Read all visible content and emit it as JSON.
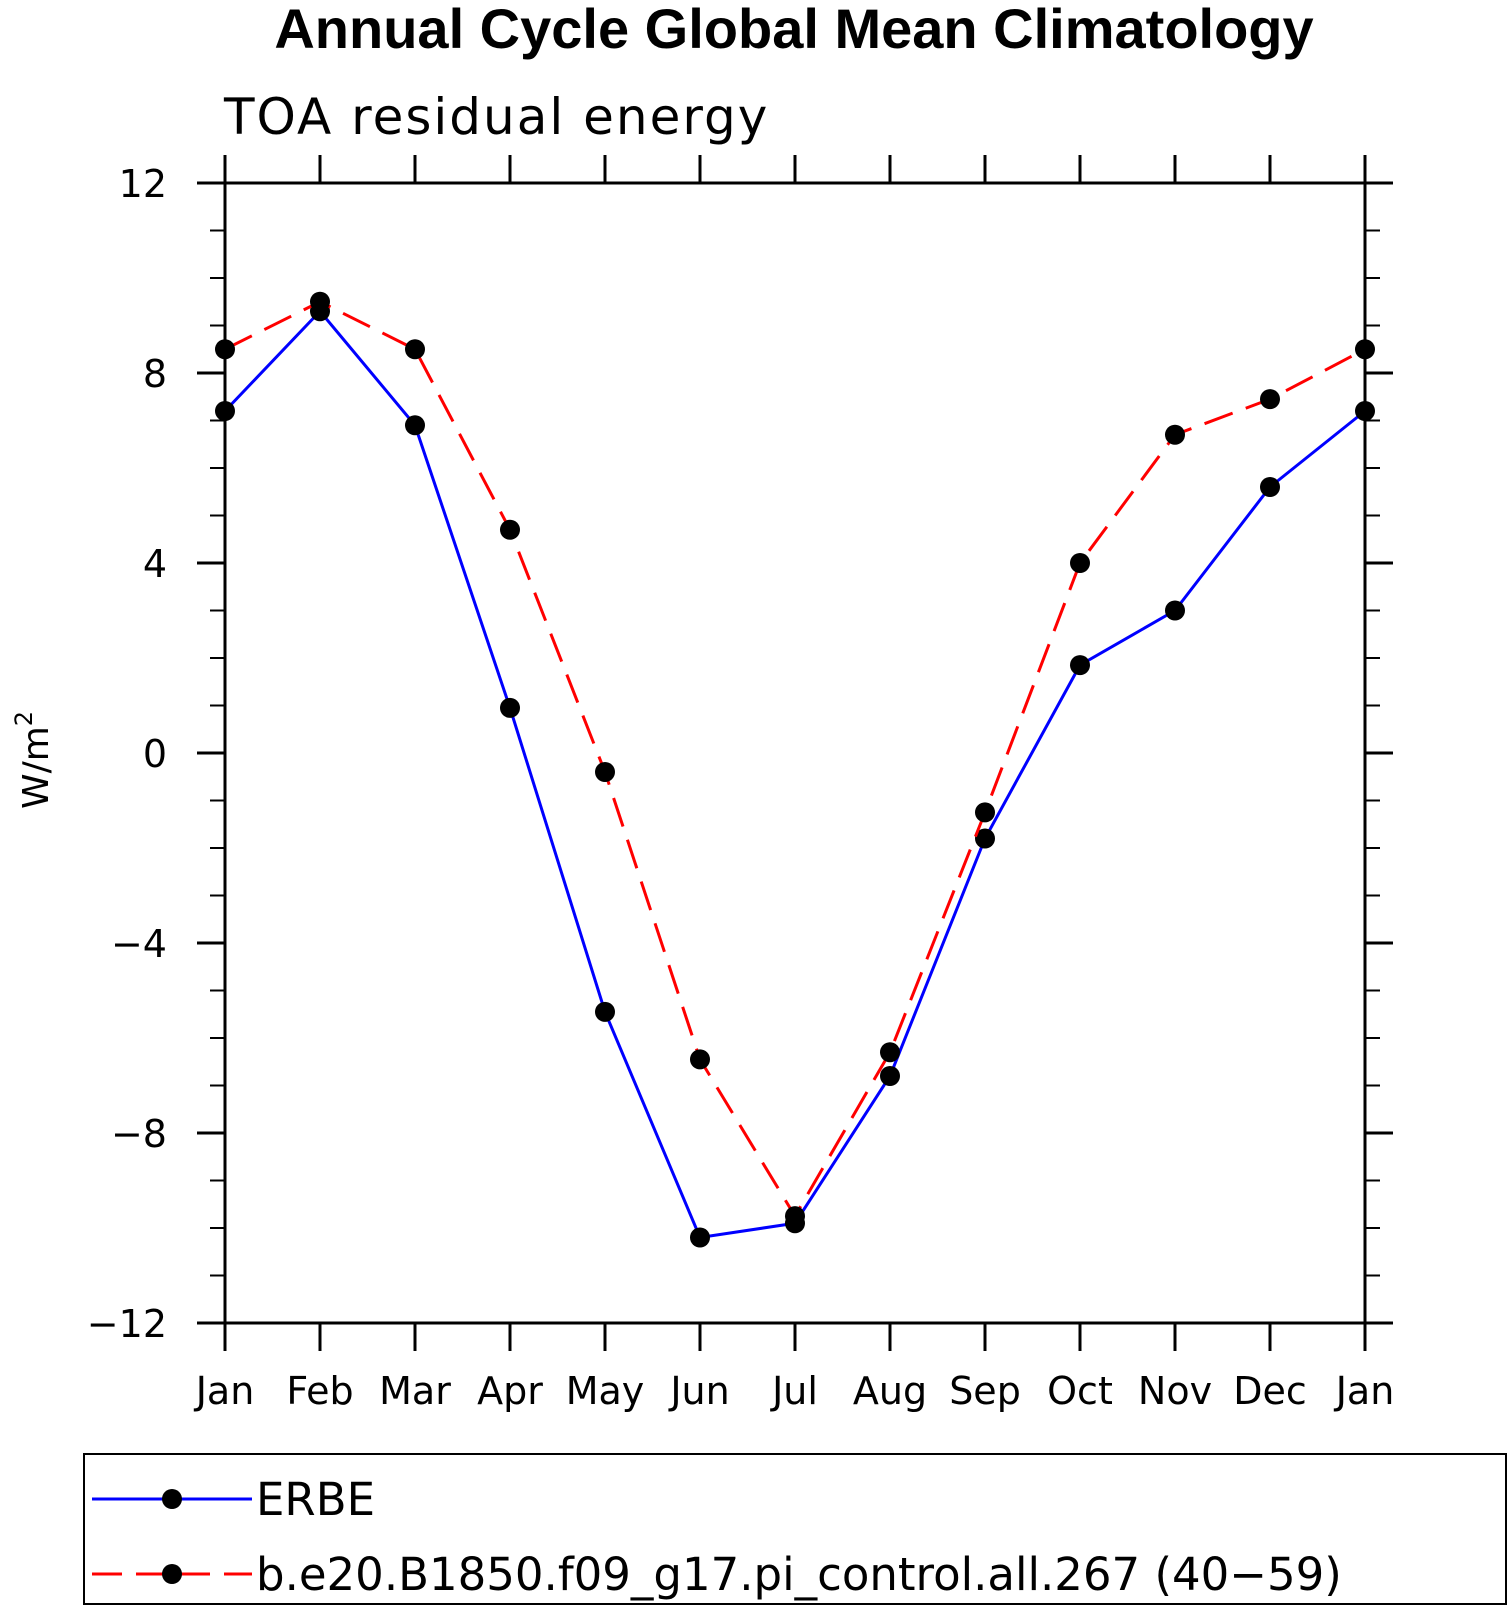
{
  "chart_data": {
    "type": "line",
    "title": "Annual Cycle Global Mean Climatology",
    "subtitle": "TOA residual energy",
    "ylabel_base": "W/m",
    "ylabel_sup": "2",
    "xlabel": "",
    "categories": [
      "Jan",
      "Feb",
      "Mar",
      "Apr",
      "May",
      "Jun",
      "Jul",
      "Aug",
      "Sep",
      "Oct",
      "Nov",
      "Dec",
      "Jan"
    ],
    "ylim": [
      -12,
      12
    ],
    "yticks": [
      12,
      8,
      4,
      0,
      -4,
      -8,
      -12
    ],
    "ytick_labels": [
      "12",
      "8",
      "4",
      "0",
      "−4",
      "−8",
      "−12"
    ],
    "grid": false,
    "legend_position": "bottom",
    "series": [
      {
        "name": "ERBE",
        "color": "#0000ff",
        "dash": "solid",
        "values": [
          7.2,
          9.3,
          6.9,
          0.95,
          -5.45,
          -10.2,
          -9.9,
          -6.8,
          -1.8,
          1.85,
          3.0,
          5.6,
          7.2
        ]
      },
      {
        "name": "b.e20.B1850.f09_g17.pi_control.all.267 (40−59)",
        "color": "#ff0000",
        "dash": "dashed",
        "values": [
          8.5,
          9.5,
          8.5,
          4.7,
          -0.4,
          -6.45,
          -9.75,
          -6.3,
          -1.25,
          4.0,
          6.7,
          7.45,
          8.5
        ]
      }
    ]
  }
}
